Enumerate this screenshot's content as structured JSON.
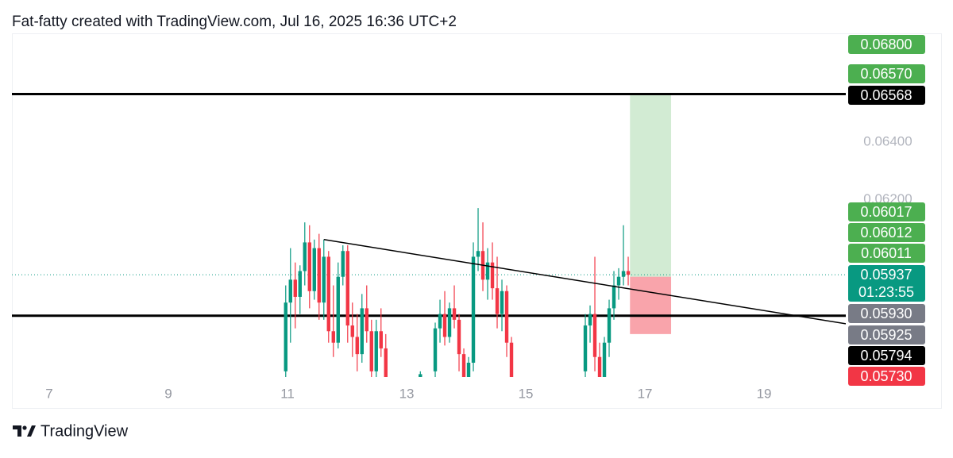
{
  "header": "Fat-fatty created with TradingView.com, Jul 16, 2025 16:36 UTC+2",
  "footer": {
    "brand": "TradingView"
  },
  "chart_data": {
    "type": "candlestick",
    "x": [
      10.97,
      11.05,
      11.13,
      11.21,
      11.29,
      11.37,
      11.45,
      11.53,
      11.61,
      11.69,
      11.77,
      11.85,
      11.93,
      12.01,
      12.09,
      12.17,
      12.25,
      12.33,
      12.41,
      12.49,
      12.57,
      12.65,
      13.23,
      13.48,
      13.56,
      13.64,
      13.72,
      13.8,
      13.88,
      13.96,
      14.04,
      14.12,
      14.2,
      14.28,
      14.36,
      14.44,
      14.52,
      14.6,
      14.68,
      14.76,
      16.0,
      16.08,
      16.16,
      16.24,
      16.32,
      16.4,
      16.48,
      16.56,
      16.64,
      16.72
    ],
    "open": [
      0.056,
      0.0584,
      0.0592,
      0.0586,
      0.0595,
      0.0605,
      0.0588,
      0.0603,
      0.0584,
      0.06,
      0.0574,
      0.057,
      0.0593,
      0.0602,
      0.0576,
      0.0572,
      0.0566,
      0.0582,
      0.0574,
      0.056,
      0.0574,
      0.0568,
      0.0558,
      0.056,
      0.0575,
      0.058,
      0.0572,
      0.0582,
      0.0578,
      0.0566,
      0.0556,
      0.0563,
      0.06,
      0.0602,
      0.0592,
      0.0598,
      0.0589,
      0.058,
      0.0588,
      0.057,
      0.056,
      0.0576,
      0.058,
      0.0565,
      0.0558,
      0.057,
      0.0582,
      0.059,
      0.0593,
      0.0595
    ],
    "high": [
      0.059,
      0.0603,
      0.0598,
      0.0597,
      0.0612,
      0.0611,
      0.0606,
      0.0608,
      0.0606,
      0.0602,
      0.059,
      0.0598,
      0.0604,
      0.0604,
      0.0584,
      0.058,
      0.0587,
      0.059,
      0.0578,
      0.0578,
      0.0582,
      0.0573,
      0.056,
      0.0577,
      0.0585,
      0.0588,
      0.0584,
      0.059,
      0.058,
      0.0568,
      0.0565,
      0.0605,
      0.0617,
      0.0612,
      0.0603,
      0.0605,
      0.06,
      0.0592,
      0.059,
      0.0572,
      0.058,
      0.0583,
      0.06,
      0.057,
      0.0572,
      0.0585,
      0.0595,
      0.0596,
      0.0611,
      0.06
    ],
    "low": [
      0.0555,
      0.057,
      0.0575,
      0.058,
      0.059,
      0.0582,
      0.0585,
      0.0578,
      0.0578,
      0.057,
      0.0565,
      0.0568,
      0.059,
      0.057,
      0.0565,
      0.056,
      0.0563,
      0.057,
      0.0555,
      0.0556,
      0.0565,
      0.055,
      0.055,
      0.0555,
      0.057,
      0.0569,
      0.057,
      0.0575,
      0.056,
      0.0552,
      0.0553,
      0.056,
      0.0595,
      0.0588,
      0.0585,
      0.0585,
      0.0575,
      0.0574,
      0.0565,
      0.055,
      0.0558,
      0.057,
      0.056,
      0.0555,
      0.0555,
      0.0565,
      0.0578,
      0.0585,
      0.059,
      0.059
    ],
    "close": [
      0.0584,
      0.0592,
      0.0586,
      0.0595,
      0.0605,
      0.0588,
      0.0603,
      0.0584,
      0.06,
      0.0574,
      0.057,
      0.0593,
      0.0602,
      0.0576,
      0.0572,
      0.0566,
      0.0582,
      0.0574,
      0.056,
      0.0574,
      0.0568,
      0.0553,
      0.0559,
      0.0575,
      0.058,
      0.0572,
      0.0582,
      0.0578,
      0.0566,
      0.0556,
      0.0563,
      0.06,
      0.0602,
      0.0592,
      0.0598,
      0.0589,
      0.058,
      0.0588,
      0.057,
      0.0555,
      0.0576,
      0.058,
      0.0565,
      0.0558,
      0.057,
      0.0582,
      0.059,
      0.0593,
      0.0595,
      0.05937
    ],
    "up_color": "#089981",
    "down_color": "#f23645",
    "xlim": [
      6.373,
      20.373
    ],
    "xticks": [
      7,
      9,
      11,
      13,
      15,
      17,
      19
    ],
    "ylim": [
      0.0558,
      0.0678
    ],
    "yticks": [
      {
        "value": 0.064,
        "label": "0.06400"
      },
      {
        "value": 0.062,
        "label": "0.06200"
      }
    ],
    "hlines": [
      0.06568,
      0.05794
    ],
    "hline_color": "#000000",
    "current_price": 0.05937,
    "current_color": "#089981",
    "trendline": {
      "x": [
        11.61,
        20.373
      ],
      "y": [
        0.0606,
        0.05766
      ]
    },
    "position": {
      "x": [
        16.75,
        17.44
      ],
      "target": 0.06568,
      "entry": 0.0593,
      "stop": 0.0573
    },
    "price_labels": [
      {
        "value": 0.068,
        "label": "0.06800",
        "color": "#4caf50"
      },
      {
        "value": 0.0657,
        "label": "0.06570",
        "color": "#4caf50"
      },
      {
        "value": 0.06568,
        "label": "0.06568",
        "color": "#000000"
      },
      {
        "value": 0.06017,
        "label": "0.06017",
        "color": "#4caf50"
      },
      {
        "value": 0.06012,
        "label": "0.06012",
        "color": "#4caf50"
      },
      {
        "value": 0.06011,
        "label": "0.06011",
        "color": "#4caf50"
      },
      {
        "value": 0.05937,
        "label": "0.05937",
        "color": "#089981",
        "countdown": "01:23:55"
      },
      {
        "value": 0.0593,
        "label": "0.05930",
        "color": "#787b86"
      },
      {
        "value": 0.05925,
        "label": "0.05925",
        "color": "#787b86"
      },
      {
        "value": 0.05794,
        "label": "0.05794",
        "color": "#000000"
      },
      {
        "value": 0.0573,
        "label": "0.05730",
        "color": "#f23645"
      }
    ]
  }
}
